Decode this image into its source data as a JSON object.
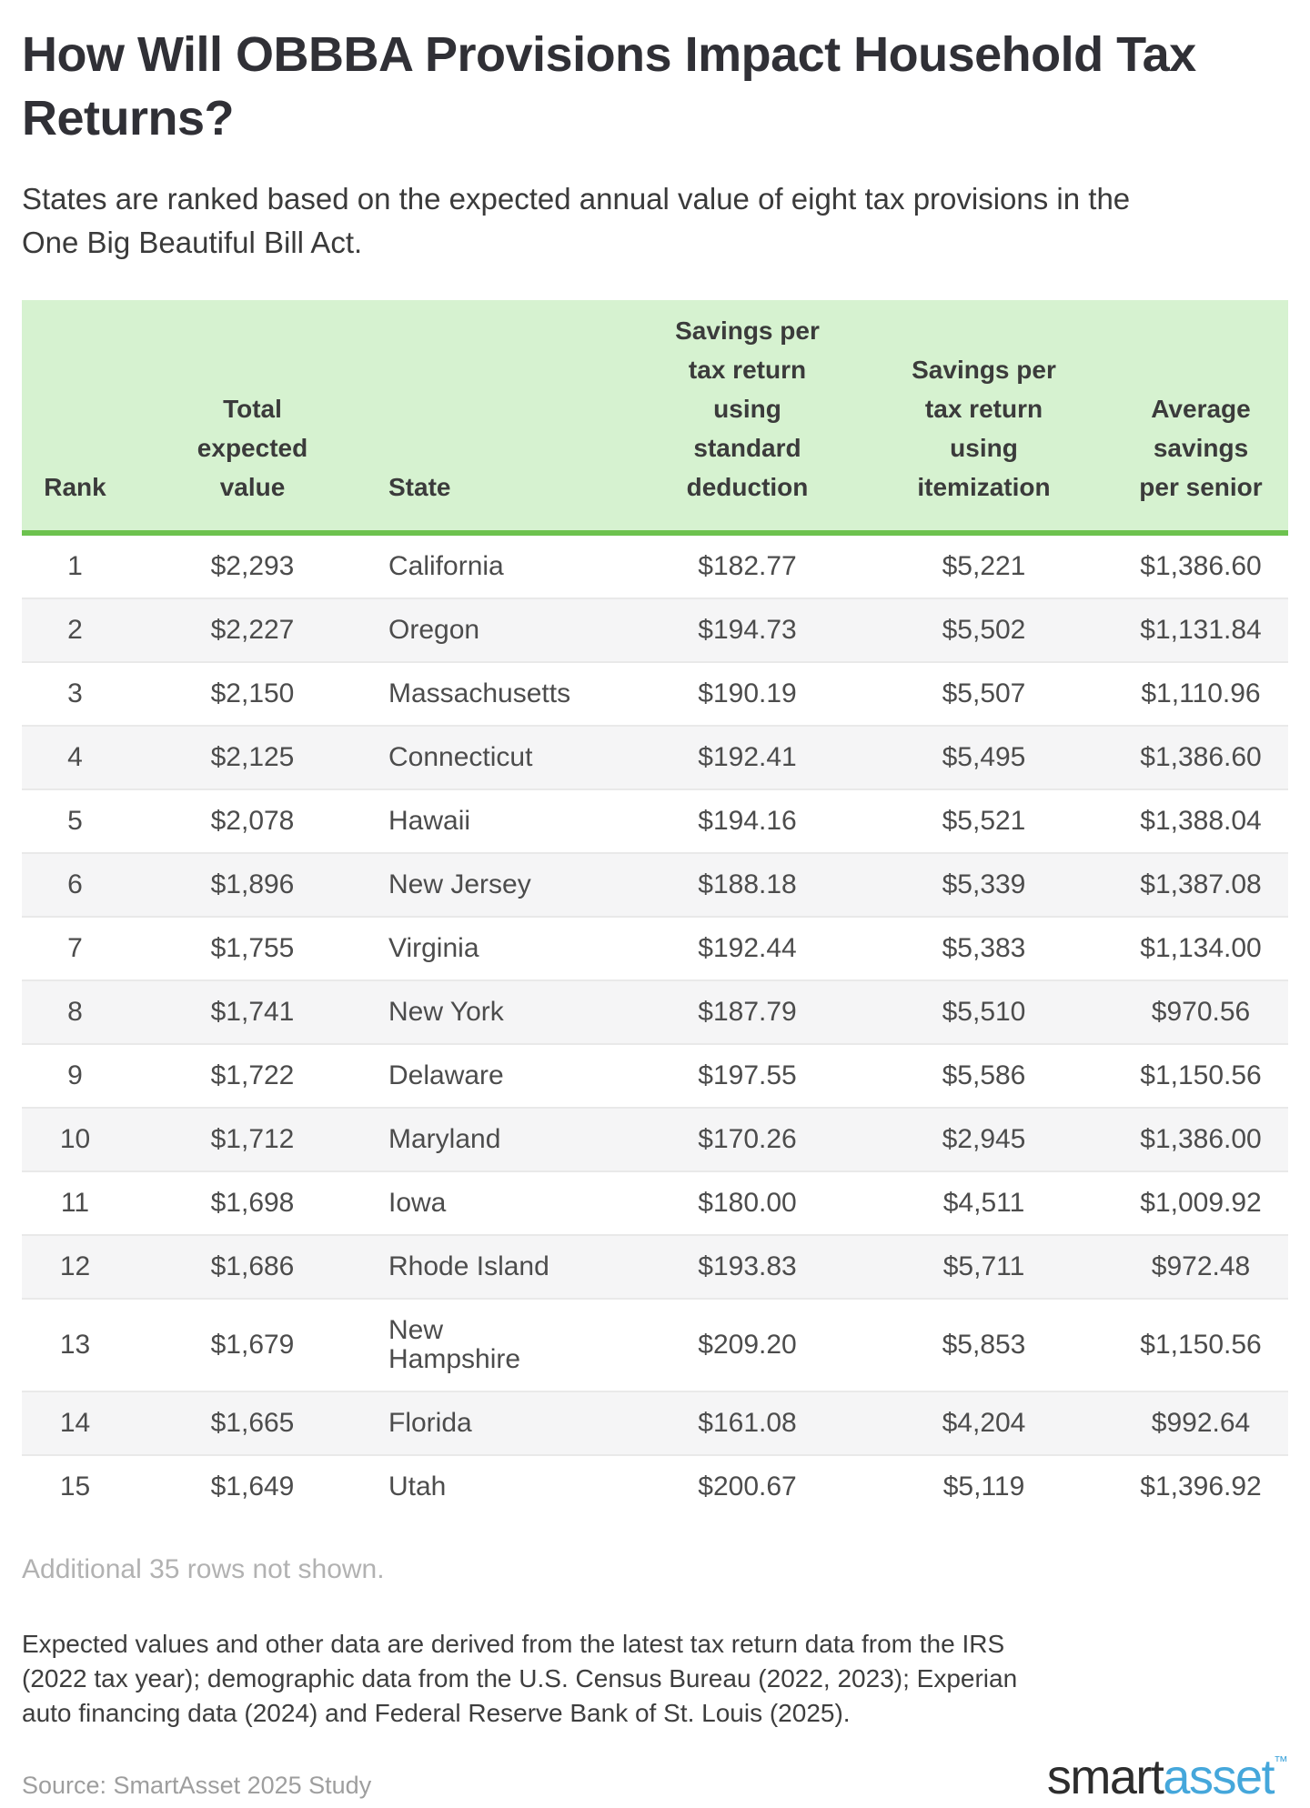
{
  "header": {
    "title": "How Will OBBBA Provisions Impact Household Tax Returns?",
    "subtitle": "States are ranked based on the expected annual value of eight tax provisions in the One Big Beautiful Bill Act."
  },
  "chart_data": {
    "type": "table",
    "title": "How Will OBBBA Provisions Impact Household Tax Returns?",
    "columns": [
      {
        "key": "rank",
        "label": "Rank"
      },
      {
        "key": "total",
        "label": "Total\nexpected\nvalue"
      },
      {
        "key": "state",
        "label": "State"
      },
      {
        "key": "std",
        "label": "Savings per\ntax return\nusing\nstandard\ndeduction"
      },
      {
        "key": "item",
        "label": "Savings per\ntax return\nusing\nitemization"
      },
      {
        "key": "senior",
        "label": "Average\nsavings\nper senior"
      }
    ],
    "rows": [
      {
        "rank": "1",
        "total": "$2,293",
        "state": "California",
        "std": "$182.77",
        "item": "$5,221",
        "senior": "$1,386.60"
      },
      {
        "rank": "2",
        "total": "$2,227",
        "state": "Oregon",
        "std": "$194.73",
        "item": "$5,502",
        "senior": "$1,131.84"
      },
      {
        "rank": "3",
        "total": "$2,150",
        "state": "Massachusetts",
        "std": "$190.19",
        "item": "$5,507",
        "senior": "$1,110.96"
      },
      {
        "rank": "4",
        "total": "$2,125",
        "state": "Connecticut",
        "std": "$192.41",
        "item": "$5,495",
        "senior": "$1,386.60"
      },
      {
        "rank": "5",
        "total": "$2,078",
        "state": "Hawaii",
        "std": "$194.16",
        "item": "$5,521",
        "senior": "$1,388.04"
      },
      {
        "rank": "6",
        "total": "$1,896",
        "state": "New Jersey",
        "std": "$188.18",
        "item": "$5,339",
        "senior": "$1,387.08"
      },
      {
        "rank": "7",
        "total": "$1,755",
        "state": "Virginia",
        "std": "$192.44",
        "item": "$5,383",
        "senior": "$1,134.00"
      },
      {
        "rank": "8",
        "total": "$1,741",
        "state": "New York",
        "std": "$187.79",
        "item": "$5,510",
        "senior": "$970.56"
      },
      {
        "rank": "9",
        "total": "$1,722",
        "state": "Delaware",
        "std": "$197.55",
        "item": "$5,586",
        "senior": "$1,150.56"
      },
      {
        "rank": "10",
        "total": "$1,712",
        "state": "Maryland",
        "std": "$170.26",
        "item": "$2,945",
        "senior": "$1,386.00"
      },
      {
        "rank": "11",
        "total": "$1,698",
        "state": "Iowa",
        "std": "$180.00",
        "item": "$4,511",
        "senior": "$1,009.92"
      },
      {
        "rank": "12",
        "total": "$1,686",
        "state": "Rhode Island",
        "std": "$193.83",
        "item": "$5,711",
        "senior": "$972.48"
      },
      {
        "rank": "13",
        "total": "$1,679",
        "state": "New\nHampshire",
        "std": "$209.20",
        "item": "$5,853",
        "senior": "$1,150.56"
      },
      {
        "rank": "14",
        "total": "$1,665",
        "state": "Florida",
        "std": "$161.08",
        "item": "$4,204",
        "senior": "$992.64"
      },
      {
        "rank": "15",
        "total": "$1,649",
        "state": "Utah",
        "std": "$200.67",
        "item": "$5,119",
        "senior": "$1,396.92"
      }
    ]
  },
  "footer": {
    "additional_note": "Additional 35 rows not shown.",
    "methodology": "Expected values and other data are derived from the latest tax return data from the IRS (2022 tax year); demographic data from the U.S. Census Bureau (2022, 2023); Experian auto financing data (2024) and Federal Reserve Bank of St. Louis (2025).",
    "source": "Source: SmartAsset 2025 Study",
    "logo": {
      "part1": "smart",
      "part2": "asset",
      "tm": "™"
    }
  },
  "colors": {
    "header_background": "#d6f2d0",
    "header_border_green": "#6dc24f",
    "alt_row_gray": "#f5f5f6",
    "logo_blue": "#45a7db",
    "muted_gray_text": "#b2b2b2"
  }
}
